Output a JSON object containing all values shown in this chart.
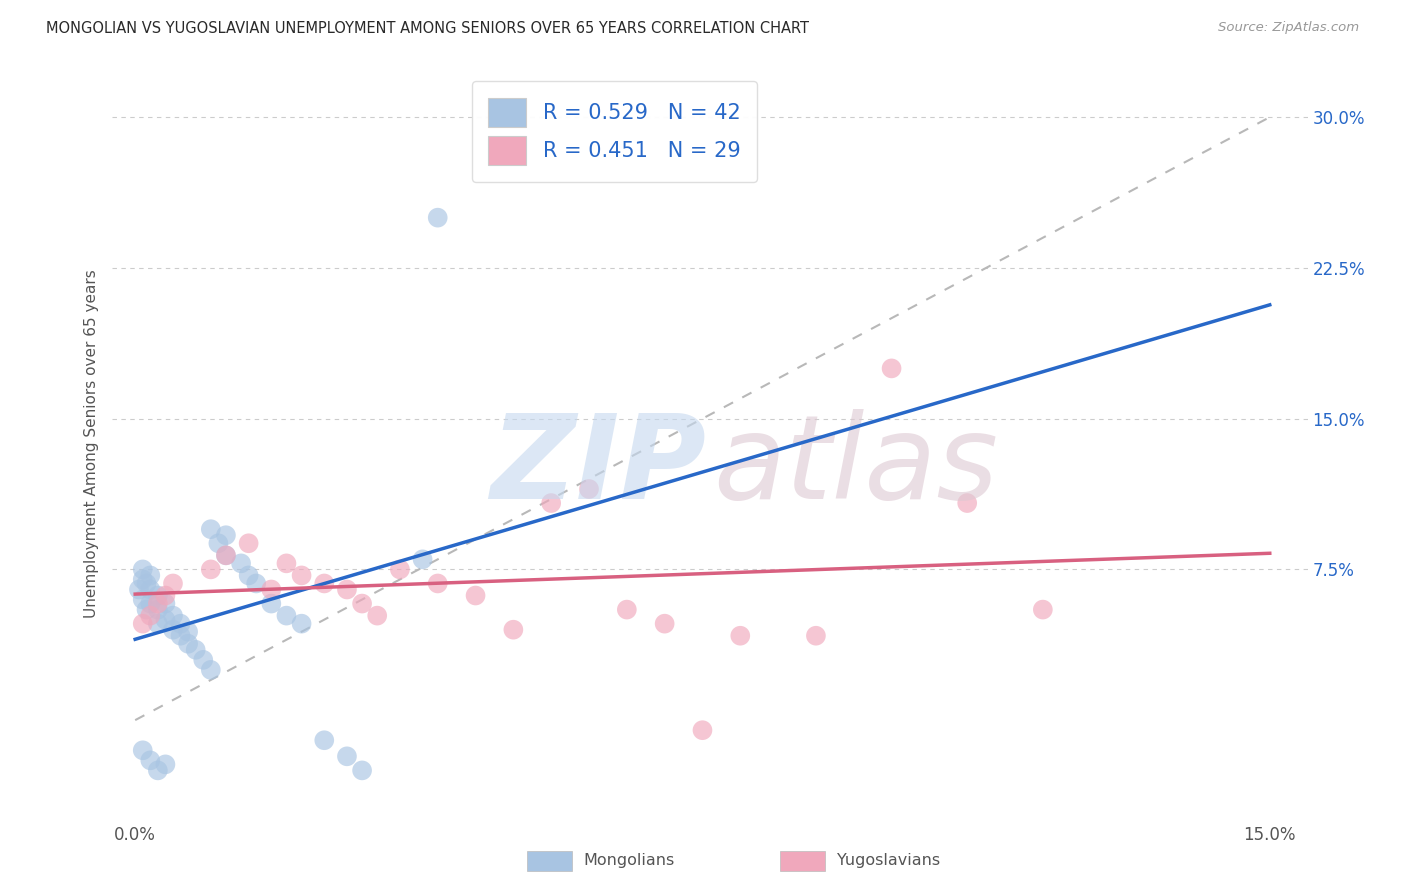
{
  "title": "MONGOLIAN VS YUGOSLAVIAN UNEMPLOYMENT AMONG SENIORS OVER 65 YEARS CORRELATION CHART",
  "source": "Source: ZipAtlas.com",
  "ylabel_label": "Unemployment Among Seniors over 65 years",
  "legend_mongolians": "Mongolians",
  "legend_yugoslavians": "Yugoslavians",
  "xlim": [
    -0.003,
    0.155
  ],
  "ylim": [
    -0.05,
    0.325
  ],
  "mongolian_R": 0.529,
  "mongolian_N": 42,
  "yugoslavian_R": 0.451,
  "yugoslavian_N": 29,
  "mongolian_color": "#a8c4e2",
  "mongolian_line_color": "#2868c8",
  "yugoslavian_color": "#f0a8bc",
  "yugoslavian_line_color": "#d86080",
  "diagonal_color": "#b8b8b8",
  "yticks": [
    0.075,
    0.15,
    0.225,
    0.3
  ],
  "ytick_labels": [
    "7.5%",
    "15.0%",
    "22.5%",
    "30.0%"
  ],
  "xticks": [
    0.0,
    0.15
  ],
  "xtick_labels": [
    "0.0%",
    "15.0%"
  ],
  "grid_color": "#cccccc",
  "mongolian_x": [
    0.0005,
    0.001,
    0.001,
    0.001,
    0.0015,
    0.0015,
    0.002,
    0.002,
    0.002,
    0.003,
    0.003,
    0.003,
    0.004,
    0.004,
    0.005,
    0.005,
    0.006,
    0.006,
    0.007,
    0.007,
    0.008,
    0.009,
    0.01,
    0.01,
    0.011,
    0.012,
    0.012,
    0.014,
    0.015,
    0.016,
    0.018,
    0.02,
    0.022,
    0.025,
    0.028,
    0.03,
    0.001,
    0.002,
    0.003,
    0.004,
    0.038,
    0.04
  ],
  "mongolian_y": [
    0.065,
    0.06,
    0.07,
    0.075,
    0.055,
    0.068,
    0.058,
    0.065,
    0.072,
    0.048,
    0.055,
    0.062,
    0.05,
    0.058,
    0.045,
    0.052,
    0.042,
    0.048,
    0.038,
    0.044,
    0.035,
    0.03,
    0.025,
    0.095,
    0.088,
    0.082,
    0.092,
    0.078,
    0.072,
    0.068,
    0.058,
    0.052,
    0.048,
    -0.01,
    -0.018,
    -0.025,
    -0.015,
    -0.02,
    -0.025,
    -0.022,
    0.08,
    0.25
  ],
  "yugoslavian_x": [
    0.001,
    0.002,
    0.003,
    0.004,
    0.005,
    0.01,
    0.012,
    0.015,
    0.018,
    0.02,
    0.022,
    0.025,
    0.028,
    0.03,
    0.032,
    0.035,
    0.04,
    0.045,
    0.05,
    0.055,
    0.06,
    0.065,
    0.07,
    0.075,
    0.08,
    0.09,
    0.1,
    0.11,
    0.12
  ],
  "yugoslavian_y": [
    0.048,
    0.052,
    0.058,
    0.062,
    0.068,
    0.075,
    0.082,
    0.088,
    0.065,
    0.078,
    0.072,
    0.068,
    0.065,
    0.058,
    0.052,
    0.075,
    0.068,
    0.062,
    0.045,
    0.108,
    0.115,
    0.055,
    0.048,
    -0.005,
    0.042,
    0.042,
    0.175,
    0.108,
    0.055
  ]
}
